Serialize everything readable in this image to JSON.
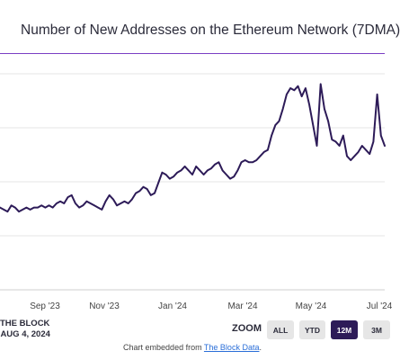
{
  "title": "Number of New Addresses on the Ethereum Network (7DMA)",
  "source": {
    "line1": "THE BLOCK",
    "line2": ": AUG 4, 2024"
  },
  "zoom": {
    "label": "ZOOM",
    "buttons": [
      {
        "label": "ALL",
        "active": false
      },
      {
        "label": "YTD",
        "active": false
      },
      {
        "label": "12M",
        "active": true
      },
      {
        "label": "3M",
        "active": false
      }
    ]
  },
  "embed": {
    "prefix": "Chart embedded from ",
    "link": "The Block Data",
    "suffix": "."
  },
  "colors": {
    "line": "#2d1b58",
    "accent": "#7b3fc4",
    "active_button": "#2d1b58"
  },
  "chart_data": {
    "type": "line",
    "title": "Number of New Addresses on the Ethereum Network (7DMA)",
    "xlabel": "",
    "ylabel": "",
    "x_tick_labels": [
      "Sep '23",
      "Nov '23",
      "Jan '24",
      "Mar '24",
      "May '24",
      "Jul '24"
    ],
    "y_tick_labels": [],
    "grid": true,
    "y_gridline_count": 5,
    "series": [
      {
        "values": [
          40,
          39,
          38,
          41,
          40,
          38,
          39,
          40,
          39,
          40,
          40,
          41,
          40,
          41,
          40,
          42,
          43,
          42,
          45,
          46,
          42,
          40,
          41,
          43,
          42,
          41,
          40,
          39,
          43,
          46,
          44,
          41,
          42,
          43,
          42,
          44,
          47,
          48,
          50,
          49,
          46,
          47,
          52,
          57,
          56,
          54,
          55,
          57,
          58,
          60,
          58,
          56,
          60,
          58,
          56,
          58,
          59,
          61,
          62,
          58,
          56,
          54,
          55,
          58,
          62,
          63,
          62,
          62,
          63,
          65,
          67,
          68,
          75,
          80,
          82,
          88,
          95,
          98,
          97,
          99,
          94,
          98,
          90,
          80,
          70,
          100,
          88,
          82,
          73,
          72,
          70,
          75,
          65,
          63,
          65,
          67,
          70,
          68,
          66,
          72,
          95,
          75,
          70
        ]
      }
    ]
  }
}
